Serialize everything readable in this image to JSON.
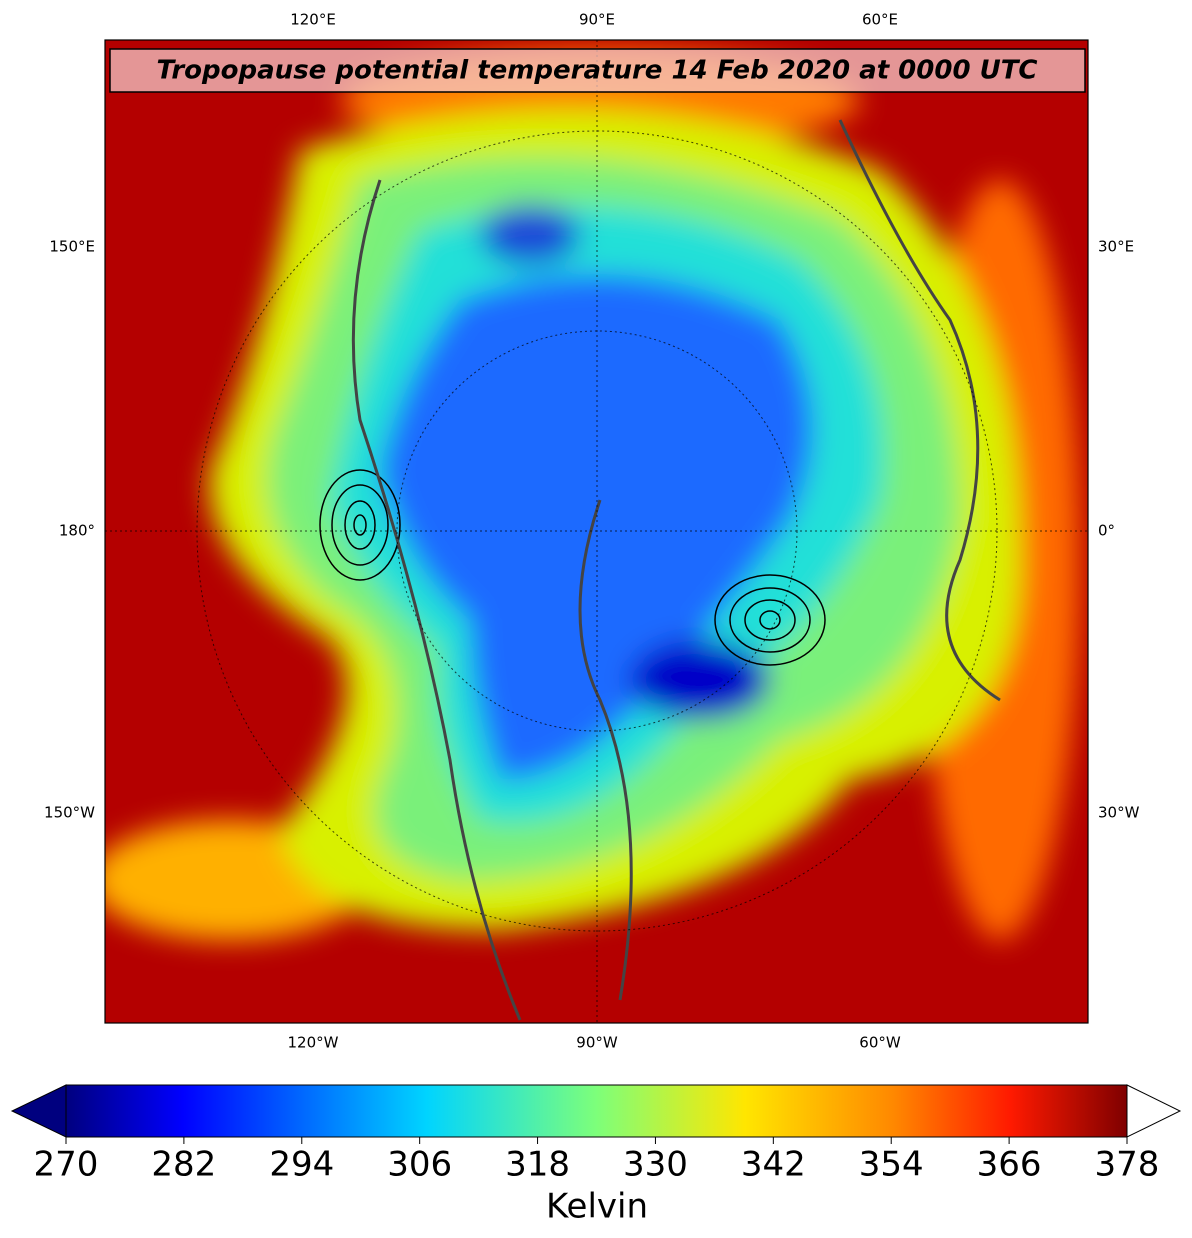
{
  "map": {
    "title": "Tropopause potential temperature 14 Feb 2020 at 0000 UTC",
    "top_labels": [
      "120°E",
      "90°E",
      "60°E"
    ],
    "bottom_labels": [
      "120°W",
      "90°W",
      "60°W"
    ],
    "left_labels": [
      "150°E",
      "180°",
      "150°W"
    ],
    "right_labels": [
      "30°E",
      "0°",
      "30°W"
    ]
  },
  "colorbar": {
    "lim": [
      270,
      378
    ],
    "ticks": [
      270,
      282,
      294,
      306,
      318,
      330,
      342,
      354,
      366,
      378
    ],
    "label": "Kelvin"
  }
}
